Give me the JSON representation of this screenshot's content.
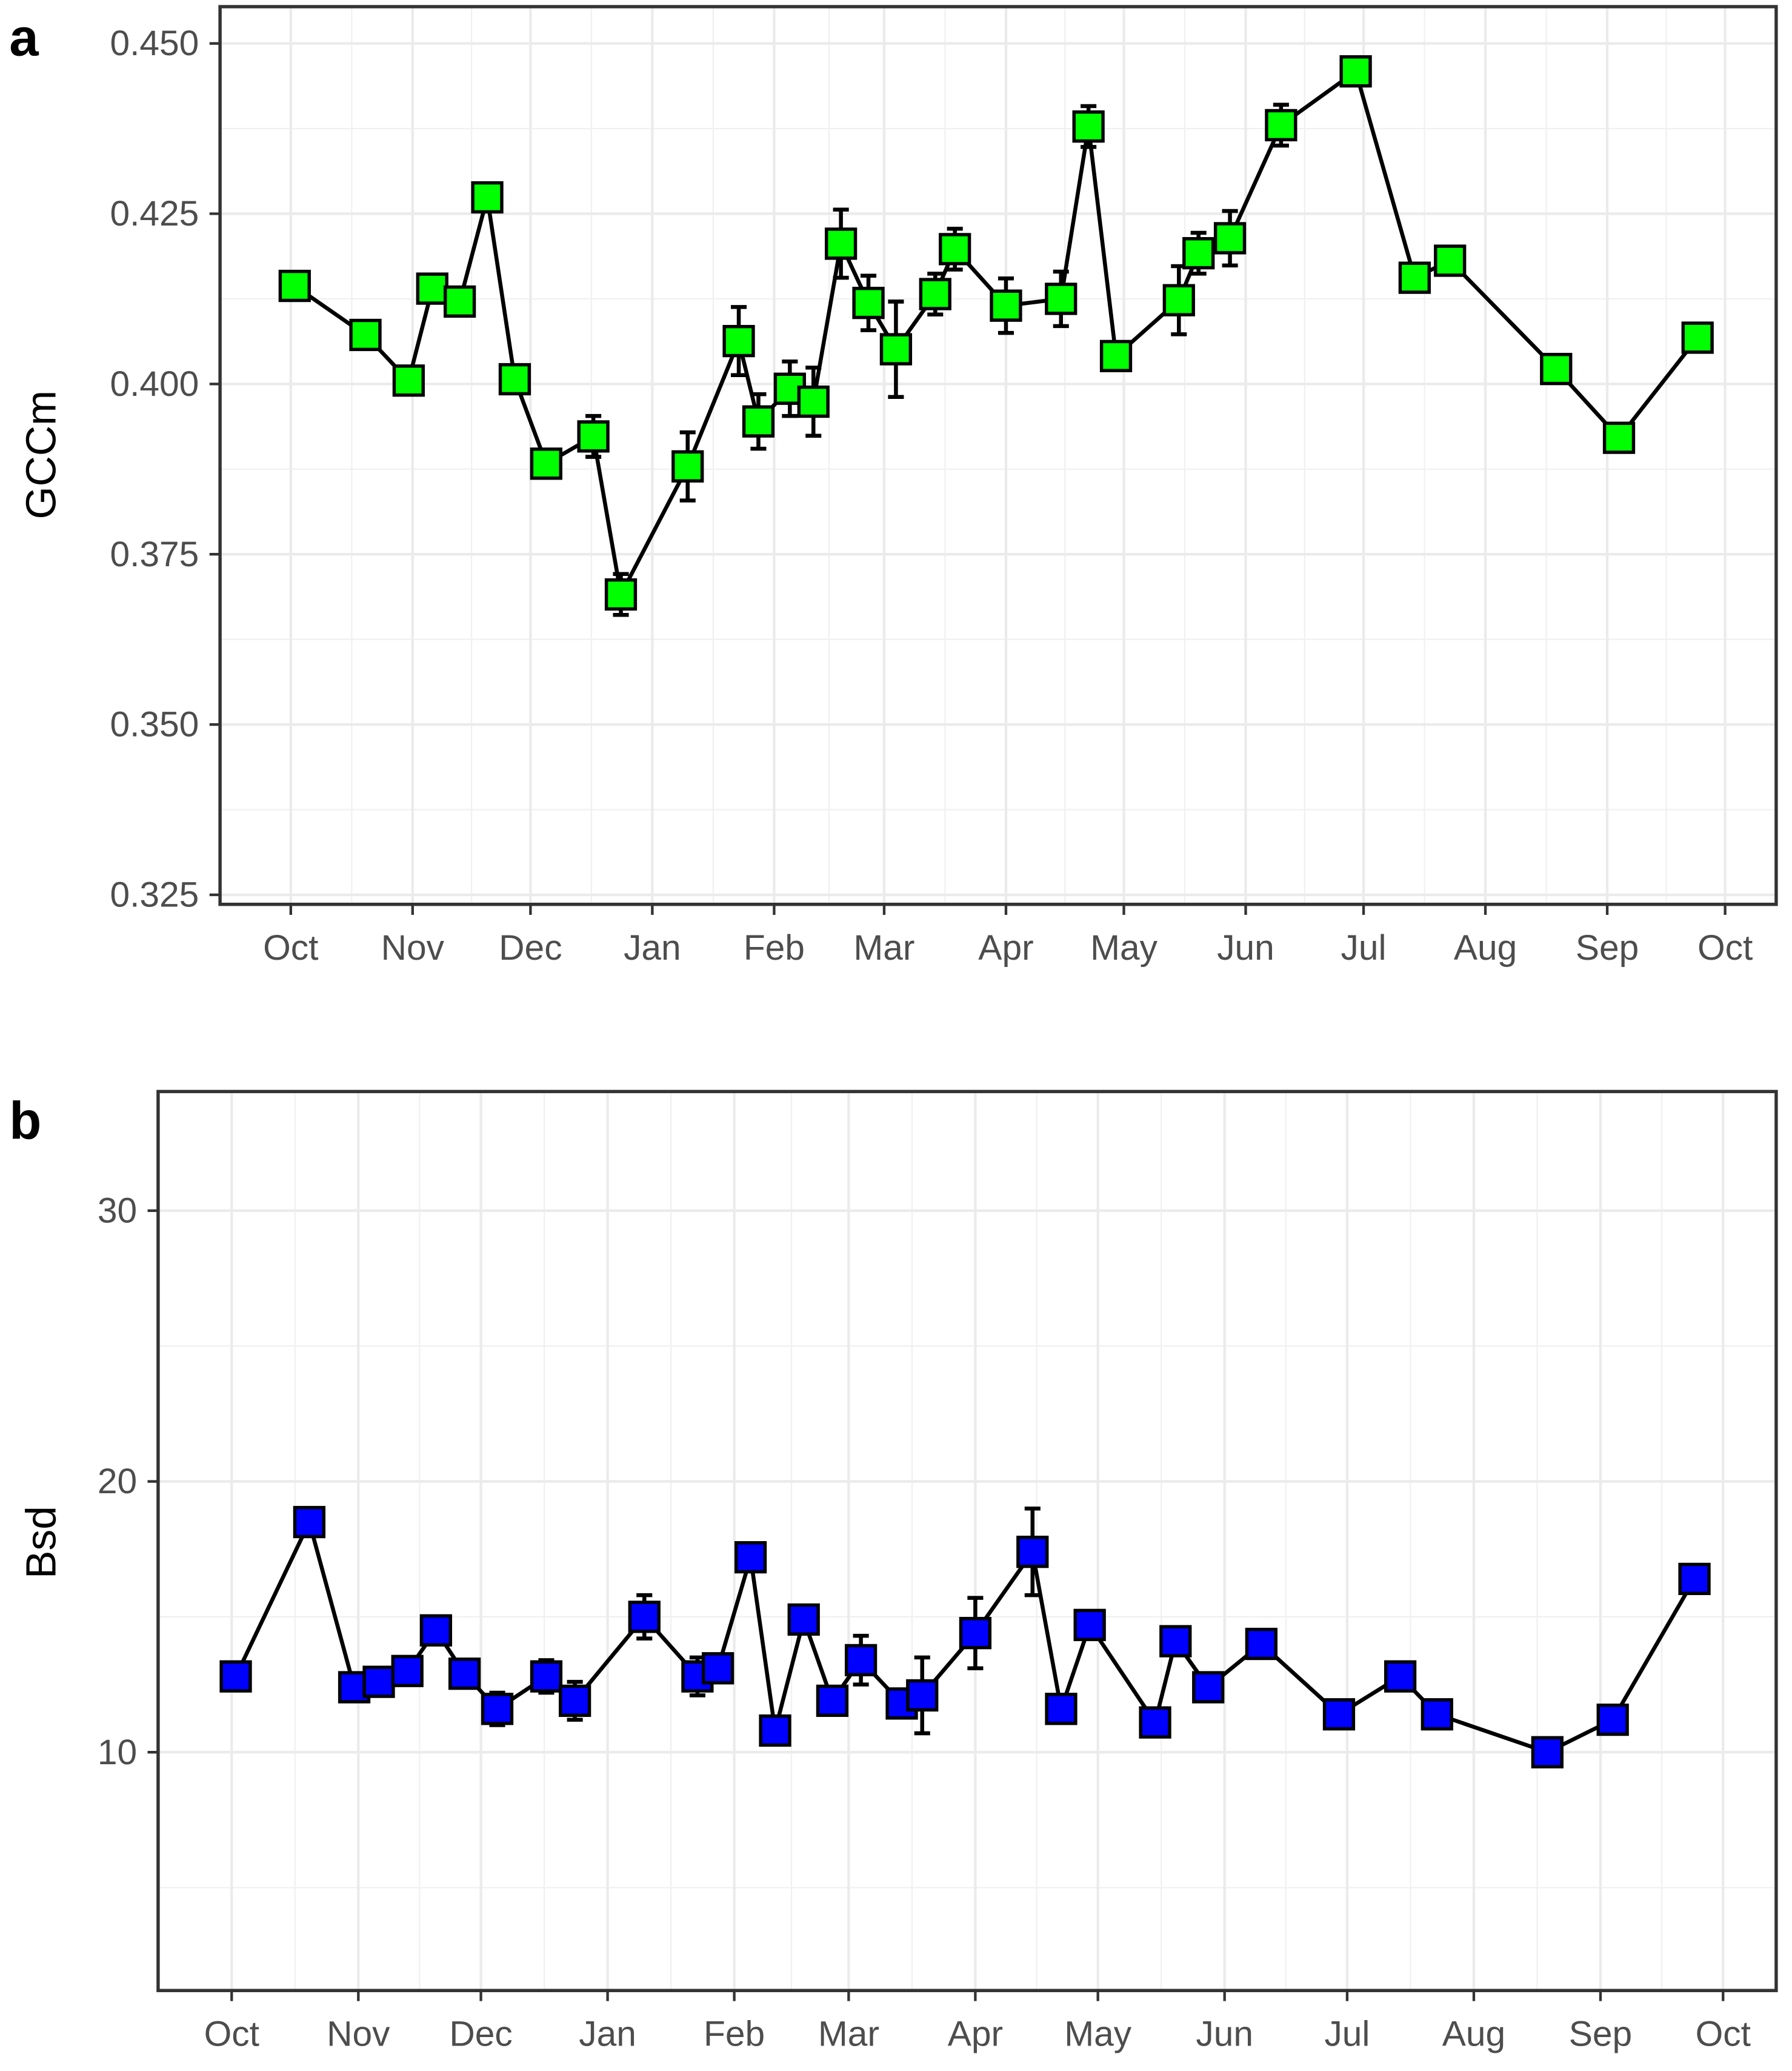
{
  "chart_data": [
    {
      "type": "line",
      "panel_label": "a",
      "ylabel": "GCCm",
      "xlabel": "",
      "x_tick_labels": [
        "Oct",
        "Nov",
        "Dec",
        "Jan",
        "Feb",
        "Mar",
        "Apr",
        "May",
        "Jun",
        "Jul",
        "Aug",
        "Sep",
        "Oct"
      ],
      "y_ticks": [
        0.325,
        0.35,
        0.375,
        0.4,
        0.425,
        0.45
      ],
      "y_tick_labels": [
        "0.325",
        "0.350",
        "0.375",
        "0.400",
        "0.425",
        "0.450"
      ],
      "ylim": [
        0.3236,
        0.4554
      ],
      "xlim": [
        "Sep 13",
        "Oct 14"
      ],
      "grid": true,
      "marker": "square",
      "marker_color": "#00ff00",
      "line_color": "#000000",
      "x": [
        "Oct 2",
        "Oct 20",
        "Oct 31",
        "Nov 6",
        "Nov 13",
        "Nov 20",
        "Nov 27",
        "Dec 5",
        "Dec 17",
        "Dec 24",
        "Jan 10",
        "Jan 23",
        "Jan 28",
        "Feb 5",
        "Feb 11",
        "Feb 18",
        "Feb 25",
        "Mar 4",
        "Mar 14",
        "Mar 19",
        "Apr 1",
        "Apr 15",
        "Apr 22",
        "Apr 29",
        "May 15",
        "May 20",
        "May 28",
        "Jun 10",
        "Jun 29",
        "Jul 14",
        "Jul 23",
        "Aug 19",
        "Sep 4",
        "Sep 24"
      ],
      "y": [
        0.4144,
        0.4072,
        0.4005,
        0.414,
        0.4121,
        0.4274,
        0.4007,
        0.3883,
        0.3923,
        0.3691,
        0.3879,
        0.4063,
        0.3945,
        0.3993,
        0.3974,
        0.4206,
        0.4119,
        0.4051,
        0.4132,
        0.4198,
        0.4115,
        0.4125,
        0.4378,
        0.4041,
        0.4123,
        0.4192,
        0.4214,
        0.438,
        0.4459,
        0.4156,
        0.4181,
        0.4022,
        0.3921,
        0.4068
      ],
      "error": [
        0,
        0,
        0,
        0,
        0,
        0,
        0.002,
        0.002,
        0.003,
        0.003,
        0.005,
        0.005,
        0.004,
        0.004,
        0.005,
        0.005,
        0.004,
        0.007,
        0.003,
        0.003,
        0.004,
        0.004,
        0.003,
        0.001,
        0.005,
        0.003,
        0.004,
        0.003,
        0.002,
        0.001,
        0.002,
        0.001,
        0,
        0
      ]
    },
    {
      "type": "line",
      "panel_label": "b",
      "ylabel": "Bsd",
      "xlabel": "",
      "x_tick_labels": [
        "Oct",
        "Nov",
        "Dec",
        "Jan",
        "Feb",
        "Mar",
        "Apr",
        "May",
        "Jun",
        "Jul",
        "Aug",
        "Sep",
        "Oct"
      ],
      "y_ticks": [
        10,
        20,
        30
      ],
      "y_tick_labels": [
        "10",
        "20",
        "30"
      ],
      "ylim": [
        1.2,
        34.4
      ],
      "xlim": [
        "Sep 13",
        "Oct 14"
      ],
      "grid": true,
      "marker": "square",
      "marker_color": "#0000ff",
      "line_color": "#000000",
      "x": [
        "Oct 2",
        "Oct 20",
        "Oct 31",
        "Nov 6",
        "Nov 13",
        "Nov 20",
        "Nov 27",
        "Dec 5",
        "Dec 17",
        "Dec 24",
        "Jan 10",
        "Jan 23",
        "Jan 28",
        "Feb 5",
        "Feb 11",
        "Feb 18",
        "Feb 25",
        "Mar 4",
        "Mar 14",
        "Mar 19",
        "Apr 1",
        "Apr 15",
        "Apr 22",
        "Apr 29",
        "May 15",
        "May 20",
        "May 28",
        "Jun 10",
        "Jun 29",
        "Jul 14",
        "Jul 23",
        "Aug 19",
        "Sep 4",
        "Sep 24"
      ],
      "y": [
        12.8,
        18.5,
        12.4,
        12.6,
        13.0,
        14.5,
        12.9,
        11.6,
        12.8,
        11.9,
        15.0,
        12.8,
        13.1,
        17.2,
        10.8,
        14.9,
        11.9,
        13.4,
        11.8,
        12.1,
        14.4,
        17.4,
        11.6,
        14.7,
        11.1,
        14.1,
        12.4,
        14.0,
        11.4,
        12.8,
        11.4,
        10.0,
        11.2,
        16.4
      ],
      "error": [
        0,
        0,
        0,
        0,
        0,
        0,
        0,
        0.6,
        0.6,
        0.7,
        0.8,
        0.7,
        0.5,
        0.5,
        0,
        0,
        0,
        0.9,
        0.3,
        1.4,
        1.3,
        1.6,
        0.5,
        0.5,
        0,
        0.3,
        0.4,
        0.3,
        0,
        0,
        0,
        0,
        0,
        0
      ]
    }
  ]
}
